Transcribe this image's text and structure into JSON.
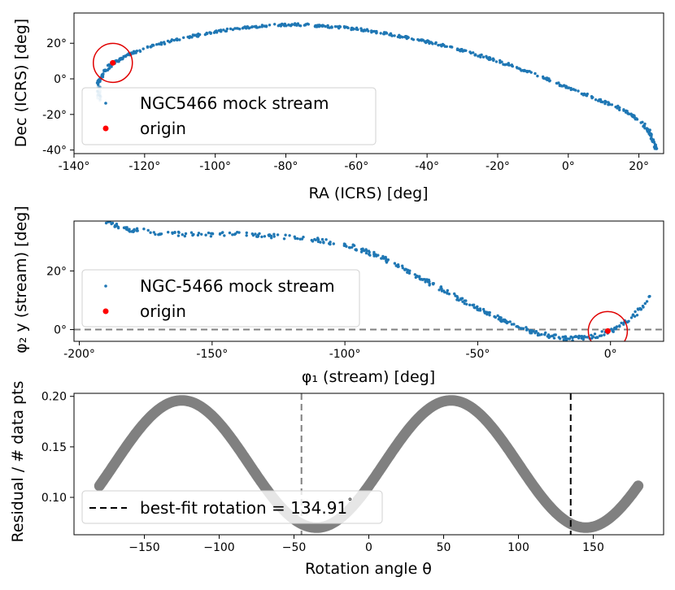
{
  "chart_data": [
    {
      "type": "scatter",
      "xlabel": "RA (ICRS) [deg]",
      "ylabel": "Dec (ICRS) [deg]",
      "xlim": [
        -140,
        27
      ],
      "ylim": [
        -42,
        37
      ],
      "xticks": [
        -140,
        -120,
        -100,
        -80,
        -60,
        -40,
        -20,
        0,
        20
      ],
      "xtick_labels": [
        "-140°",
        "-120°",
        "-100°",
        "-80°",
        "-60°",
        "-40°",
        "-20°",
        "0°",
        "20°"
      ],
      "yticks": [
        -40,
        -20,
        0,
        20
      ],
      "ytick_labels": [
        "-40°",
        "-20°",
        "0°",
        "20°"
      ],
      "legend_position": "lower-left",
      "series": [
        {
          "name": "NGC5466 mock stream",
          "color": "#1f77b4",
          "track": [
            [
              -133.5,
              -3
            ],
            [
              -132.5,
              0
            ],
            [
              -131,
              5
            ],
            [
              -129,
              9
            ],
            [
              -127,
              11
            ],
            [
              -124,
              14
            ],
            [
              -120,
              17
            ],
            [
              -115,
              20
            ],
            [
              -110,
              22.5
            ],
            [
              -105,
              24.5
            ],
            [
              -100,
              26.5
            ],
            [
              -95,
              28
            ],
            [
              -90,
              29
            ],
            [
              -85,
              30
            ],
            [
              -80,
              30.5
            ],
            [
              -75,
              30.3
            ],
            [
              -70,
              29.8
            ],
            [
              -65,
              29
            ],
            [
              -60,
              28
            ],
            [
              -55,
              26.5
            ],
            [
              -50,
              25
            ],
            [
              -45,
              23
            ],
            [
              -40,
              21
            ],
            [
              -35,
              18.5
            ],
            [
              -30,
              16
            ],
            [
              -25,
              13
            ],
            [
              -20,
              10
            ],
            [
              -15,
              6.5
            ],
            [
              -10,
              3
            ],
            [
              -5,
              -1
            ],
            [
              0,
              -5
            ],
            [
              5,
              -9
            ],
            [
              10,
              -13
            ],
            [
              14,
              -16
            ],
            [
              18,
              -20
            ],
            [
              21,
              -25
            ],
            [
              23,
              -30
            ],
            [
              24,
              -35
            ],
            [
              25,
              -40
            ]
          ]
        },
        {
          "name": "origin",
          "color": "#ff0000",
          "points": [
            [
              -129,
              9
            ]
          ]
        }
      ],
      "annotation": {
        "type": "circle",
        "center": [
          -129,
          9
        ],
        "color": "#e00000"
      }
    },
    {
      "type": "scatter",
      "xlabel": "φ₁ (stream) [deg]",
      "ylabel": "φ₂ y (stream) [deg]",
      "xlim": [
        -202,
        20
      ],
      "ylim": [
        -4,
        37
      ],
      "xticks": [
        -200,
        -150,
        -100,
        -50,
        0
      ],
      "xtick_labels": [
        "-200°",
        "-150°",
        "-100°",
        "-50°",
        "0°"
      ],
      "yticks": [
        0,
        20
      ],
      "ytick_labels": [
        "0°",
        "20°"
      ],
      "hline": {
        "y": 0,
        "style": "dashed",
        "color": "#808080"
      },
      "legend_position": "lower-left",
      "series": [
        {
          "name": "NGC-5466 mock stream",
          "color": "#1f77b4",
          "track": [
            [
              -190,
              36.5
            ],
            [
              -185,
              35
            ],
            [
              -180,
              34
            ],
            [
              -170,
              33
            ],
            [
              -160,
              32.5
            ],
            [
              -150,
              32.5
            ],
            [
              -140,
              32.5
            ],
            [
              -130,
              32
            ],
            [
              -120,
              31.5
            ],
            [
              -110,
              30.5
            ],
            [
              -100,
              29
            ],
            [
              -95,
              27.5
            ],
            [
              -90,
              26
            ],
            [
              -85,
              24
            ],
            [
              -80,
              22
            ],
            [
              -75,
              19.5
            ],
            [
              -70,
              17
            ],
            [
              -65,
              14.5
            ],
            [
              -60,
              12
            ],
            [
              -55,
              9.5
            ],
            [
              -50,
              7
            ],
            [
              -45,
              5
            ],
            [
              -40,
              3
            ],
            [
              -35,
              1
            ],
            [
              -30,
              -0.5
            ],
            [
              -25,
              -1.8
            ],
            [
              -20,
              -2.6
            ],
            [
              -15,
              -3
            ],
            [
              -10,
              -2.8
            ],
            [
              -5,
              -2
            ],
            [
              0,
              -0.5
            ],
            [
              5,
              2
            ],
            [
              10,
              6
            ],
            [
              15,
              11
            ]
          ]
        },
        {
          "name": "origin",
          "color": "#ff0000",
          "points": [
            [
              -1,
              -0.5
            ]
          ]
        }
      ],
      "annotation": {
        "type": "circle",
        "center": [
          -1,
          -0.5
        ],
        "color": "#e00000"
      }
    },
    {
      "type": "line",
      "xlabel": "Rotation angle θ",
      "ylabel": "Residual / # data pts",
      "xlim": [
        -197,
        197
      ],
      "ylim": [
        0.063,
        0.203
      ],
      "xticks": [
        -150,
        -100,
        -50,
        0,
        50,
        100,
        150
      ],
      "xtick_labels": [
        "−150",
        "−100",
        "−50",
        "0",
        "50",
        "100",
        "150"
      ],
      "yticks": [
        0.1,
        0.15,
        0.2
      ],
      "ytick_labels": [
        "0.10",
        "0.15",
        "0.20"
      ],
      "curve": {
        "type": "sinusoid",
        "x_range": [
          -180,
          180
        ],
        "mean": 0.133,
        "amplitude": 0.063,
        "peak_at": -125,
        "period": 180,
        "color": "#808080"
      },
      "vlines": [
        {
          "x": -45,
          "color": "#808080",
          "style": "dashed"
        },
        {
          "x": 134.91,
          "color": "#000000",
          "style": "dashed"
        }
      ],
      "legend_position": "lower-left",
      "legend": [
        {
          "label": "best-fit rotation = 134.91",
          "suffix": "˚",
          "style": "dashed",
          "color": "#000000"
        }
      ]
    }
  ]
}
